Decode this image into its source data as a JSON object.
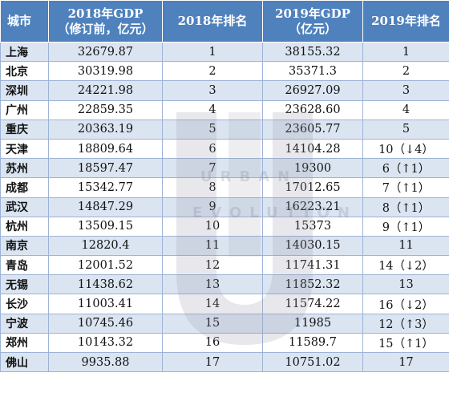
{
  "headers": [
    "城市",
    "2018年GDP\n（修订前，亿元）",
    "2018年排名",
    "2019年GDP\n（亿元）",
    "2019年排名"
  ],
  "rows": [
    {
      "city": "上海",
      "gdp2018": "32679.87",
      "rank2018": "1",
      "gdp2019": "38155.32",
      "rank2019": "1"
    },
    {
      "city": "北京",
      "gdp2018": "30319.98",
      "rank2018": "2",
      "gdp2019": "35371.3",
      "rank2019": "2"
    },
    {
      "city": "深圳",
      "gdp2018": "24221.98",
      "rank2018": "3",
      "gdp2019": "26927.09",
      "rank2019": "3"
    },
    {
      "city": "广州",
      "gdp2018": "22859.35",
      "rank2018": "4",
      "gdp2019": "23628.60",
      "rank2019": "4"
    },
    {
      "city": "重庆",
      "gdp2018": "20363.19",
      "rank2018": "5",
      "gdp2019": "23605.77",
      "rank2019": "5"
    },
    {
      "city": "天津",
      "gdp2018": "18809.64",
      "rank2018": "6",
      "gdp2019": "14104.28",
      "rank2019": "10（↓4）"
    },
    {
      "city": "苏州",
      "gdp2018": "18597.47",
      "rank2018": "7",
      "gdp2019": "19300",
      "rank2019": "6（↑1）"
    },
    {
      "city": "成都",
      "gdp2018": "15342.77",
      "rank2018": "8",
      "gdp2019": "17012.65",
      "rank2019": "7（↑1）"
    },
    {
      "city": "武汉",
      "gdp2018": "14847.29",
      "rank2018": "9",
      "gdp2019": "16223.21",
      "rank2019": "8（↑1）"
    },
    {
      "city": "杭州",
      "gdp2018": "13509.15",
      "rank2018": "10",
      "gdp2019": "15373",
      "rank2019": "9（↑1）"
    },
    {
      "city": "南京",
      "gdp2018": "12820.4",
      "rank2018": "11",
      "gdp2019": "14030.15",
      "rank2019": "11"
    },
    {
      "city": "青岛",
      "gdp2018": "12001.52",
      "rank2018": "12",
      "gdp2019": "11741.31",
      "rank2019": "14（↓2）"
    },
    {
      "city": "无锡",
      "gdp2018": "11438.62",
      "rank2018": "13",
      "gdp2019": "11852.32",
      "rank2019": "13"
    },
    {
      "city": "长沙",
      "gdp2018": "11003.41",
      "rank2018": "14",
      "gdp2019": "11574.22",
      "rank2019": "16（↓2）"
    },
    {
      "city": "宁波",
      "gdp2018": "10745.46",
      "rank2018": "15",
      "gdp2019": "11985",
      "rank2019": "12（↑3）"
    },
    {
      "city": "郑州",
      "gdp2018": "10143.32",
      "rank2018": "16",
      "gdp2019": "11589.7",
      "rank2019": "15（↑1）"
    },
    {
      "city": "佛山",
      "gdp2018": "9935.88",
      "rank2018": "17",
      "gdp2019": "10751.02",
      "rank2019": "17"
    }
  ],
  "watermark": {
    "line1": "URBAN",
    "line2": "EVOLUTION"
  },
  "colors": {
    "header_bg": "#4f81bd",
    "band_bg": "#dbe5f1",
    "border": "#9db3d6"
  }
}
